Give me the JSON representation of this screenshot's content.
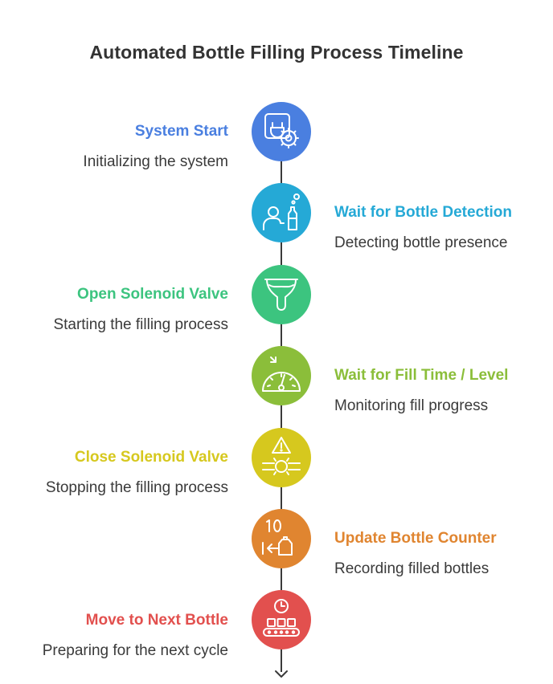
{
  "title": "Automated Bottle Filling Process Timeline",
  "steps": [
    {
      "title": "System Start",
      "description": "Initializing the system",
      "color": "#4A7FE0",
      "icon": "power-gear-icon",
      "side": "left"
    },
    {
      "title": "Wait for Bottle Detection",
      "description": "Detecting bottle presence",
      "color": "#25A9D6",
      "icon": "person-bottle-icon",
      "side": "right"
    },
    {
      "title": "Open Solenoid Valve",
      "description": "Starting the filling process",
      "color": "#3CC47F",
      "icon": "funnel-icon",
      "side": "left"
    },
    {
      "title": "Wait for Fill Time / Level",
      "description": "Monitoring fill progress",
      "color": "#8BBE3A",
      "icon": "gauge-icon",
      "side": "right"
    },
    {
      "title": "Close Solenoid Valve",
      "description": "Stopping the filling process",
      "color": "#D6C81E",
      "icon": "valve-warning-icon",
      "side": "left"
    },
    {
      "title": "Update Bottle Counter",
      "description": "Recording filled bottles",
      "color": "#E08530",
      "icon": "counter-icon",
      "side": "right"
    },
    {
      "title": "Move to Next Bottle",
      "description": "Preparing for the next cycle",
      "color": "#E2504E",
      "icon": "conveyor-clock-icon",
      "side": "left"
    }
  ],
  "colors": {
    "text": "#333333",
    "line": "#3a3a3a"
  }
}
